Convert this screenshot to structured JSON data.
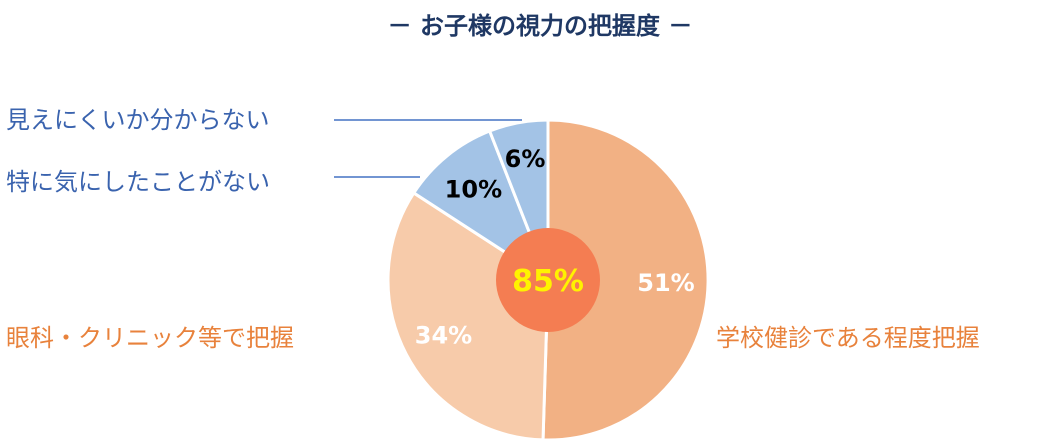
{
  "chart_data": {
    "type": "pie",
    "title": "－ お子様の視力の把握度 －",
    "slices": [
      {
        "label": "学校健診である程度把握",
        "value": 51,
        "value_label": "51%",
        "color": "#F2B184",
        "label_color": "#E8823C",
        "value_color": "#FFFFFF"
      },
      {
        "label": "眼科・クリニック等で把握",
        "value": 34,
        "value_label": "34%",
        "color": "#F7CBAA",
        "label_color": "#E8823C",
        "value_color": "#FFFFFF"
      },
      {
        "label": "特に気にしたことがない",
        "value": 10,
        "value_label": "10%",
        "color": "#A3C3E6",
        "label_color": "#3A63AE",
        "value_color": "#000000"
      },
      {
        "label": "見えにくいか分からない",
        "value": 6,
        "value_label": "6%",
        "color": "#A3C3E6",
        "label_color": "#3A63AE",
        "value_color": "#000000"
      }
    ],
    "center": {
      "label": "85%",
      "value": 85,
      "color": "#F47D52",
      "text_color": "#FFF200"
    },
    "title_color": "#1F3864",
    "leader_color": "#4472C4"
  }
}
